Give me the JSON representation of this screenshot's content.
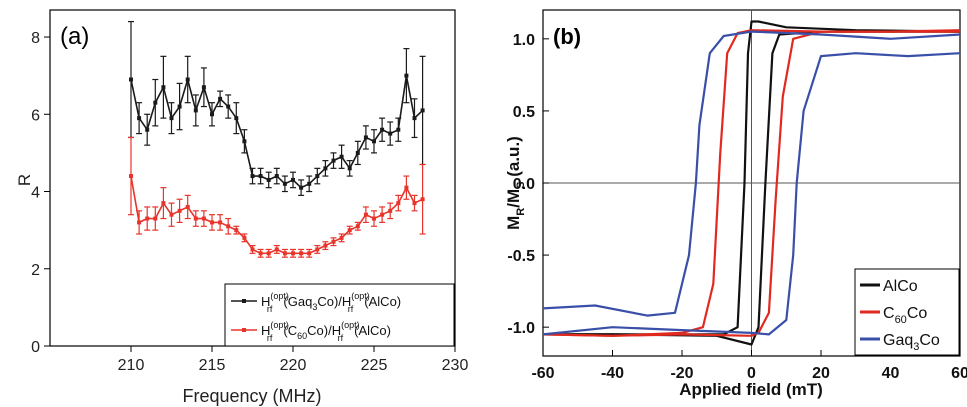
{
  "chart_data": [
    {
      "panel_label": "(a)",
      "type": "line",
      "xlabel": "Frequency (MHz)",
      "ylabel": "R",
      "xlim": [
        205,
        230
      ],
      "ylim": [
        0,
        8.7
      ],
      "xticks": [
        210,
        215,
        220,
        225,
        230
      ],
      "yticks": [
        0,
        2,
        4,
        6,
        8
      ],
      "grid": false,
      "legend_position": "bottom-right",
      "x": [
        210,
        210.5,
        211,
        211.5,
        212,
        212.5,
        213,
        213.5,
        214,
        214.5,
        215,
        215.5,
        216,
        216.5,
        217,
        217.5,
        218,
        218.5,
        219,
        219.5,
        220,
        220.5,
        221,
        221.5,
        222,
        222.5,
        223,
        223.5,
        224,
        224.5,
        225,
        225.5,
        226,
        226.5,
        227,
        227.5,
        228
      ],
      "series": [
        {
          "legend": {
            "main": "H",
            "sup": "(opt)",
            "sub": "rf",
            "rest_a": "(Gaq",
            "rest_a_sub": "3",
            "rest_b": "Co)/H",
            "sup2": "(opt)",
            "sub2": "rf",
            "rest_c": "(AlCo)"
          },
          "color": "#1a1a1a",
          "values": [
            6.9,
            5.9,
            5.6,
            6.3,
            6.7,
            5.9,
            6.2,
            6.9,
            6.1,
            6.7,
            6.0,
            6.4,
            6.2,
            5.9,
            5.3,
            4.4,
            4.4,
            4.3,
            4.4,
            4.2,
            4.3,
            4.1,
            4.2,
            4.4,
            4.6,
            4.8,
            4.9,
            4.6,
            5.0,
            5.4,
            5.3,
            5.6,
            5.5,
            5.6,
            7.0,
            5.9,
            6.1
          ],
          "errors": [
            1.5,
            0.4,
            0.4,
            0.6,
            0.8,
            0.4,
            0.6,
            0.6,
            0.4,
            0.5,
            0.3,
            0.2,
            0.3,
            0.4,
            0.3,
            0.2,
            0.2,
            0.2,
            0.2,
            0.2,
            0.2,
            0.2,
            0.2,
            0.2,
            0.2,
            0.2,
            0.3,
            0.2,
            0.3,
            0.3,
            0.3,
            0.3,
            0.3,
            0.3,
            0.7,
            0.5,
            1.4
          ]
        },
        {
          "legend": {
            "main": "H",
            "sup": "(opt)",
            "sub": "rf",
            "rest_a": "(C",
            "rest_a_sub": "60",
            "rest_b": "Co)/H",
            "sup2": "(opt)",
            "sub2": "rf",
            "rest_c": "(AlCo)"
          },
          "color": "#e8342a",
          "values": [
            4.4,
            3.2,
            3.3,
            3.3,
            3.7,
            3.4,
            3.5,
            3.6,
            3.3,
            3.3,
            3.2,
            3.2,
            3.1,
            3.0,
            2.8,
            2.5,
            2.4,
            2.4,
            2.5,
            2.4,
            2.4,
            2.4,
            2.4,
            2.5,
            2.6,
            2.7,
            2.8,
            3.0,
            3.1,
            3.4,
            3.3,
            3.4,
            3.5,
            3.7,
            4.1,
            3.7,
            3.8
          ],
          "errors": [
            1.0,
            0.3,
            0.3,
            0.3,
            0.4,
            0.3,
            0.3,
            0.3,
            0.2,
            0.2,
            0.2,
            0.2,
            0.2,
            0.1,
            0.1,
            0.1,
            0.1,
            0.1,
            0.1,
            0.1,
            0.1,
            0.1,
            0.1,
            0.1,
            0.1,
            0.1,
            0.1,
            0.1,
            0.1,
            0.2,
            0.2,
            0.2,
            0.2,
            0.2,
            0.3,
            0.2,
            0.9
          ]
        }
      ]
    },
    {
      "panel_label": "(b)",
      "type": "line",
      "xlabel": "Applied field (mT)",
      "ylabel": {
        "main": "M",
        "sub1": "R",
        "mid": "/M",
        "sub2": "S",
        "rest": " (a.u.)"
      },
      "xlim": [
        -60,
        60
      ],
      "ylim": [
        -1.2,
        1.2
      ],
      "xticks": [
        -60,
        -40,
        -20,
        0,
        20,
        40,
        60
      ],
      "yticks": [
        -1.0,
        -0.5,
        0.0,
        0.5,
        1.0
      ],
      "yticklabels": [
        "-1.0",
        "-0.5",
        "0.0",
        "0.5",
        "1.0"
      ],
      "grid": false,
      "reference_lines": {
        "x": 0,
        "y": 0
      },
      "legend_position": "bottom-right",
      "series": [
        {
          "legend": {
            "main": "AlCo"
          },
          "color": "#111111",
          "branches": [
            {
              "x": [
                -60,
                -40,
                -20,
                -8,
                -4,
                -2,
                -1,
                0,
                2,
                10,
                30,
                60
              ],
              "y": [
                -1.05,
                -1.05,
                -1.05,
                -1.05,
                -1.0,
                0.0,
                0.9,
                1.12,
                1.12,
                1.08,
                1.06,
                1.05
              ]
            },
            {
              "x": [
                60,
                40,
                20,
                8,
                6,
                4,
                2,
                0,
                -10,
                -40,
                -60
              ],
              "y": [
                1.05,
                1.05,
                1.05,
                1.03,
                0.9,
                0.0,
                -1.0,
                -1.12,
                -1.06,
                -1.05,
                -1.05
              ]
            }
          ]
        },
        {
          "legend": {
            "main": "C",
            "sub": "60",
            "rest": "Co"
          },
          "color": "#e02a20",
          "branches": [
            {
              "x": [
                -60,
                -40,
                -20,
                -14,
                -11,
                -9,
                -7,
                -4,
                0,
                20,
                40,
                60
              ],
              "y": [
                -1.05,
                -1.06,
                -1.04,
                -1.0,
                -0.7,
                0.2,
                0.9,
                1.04,
                1.06,
                1.05,
                1.05,
                1.05
              ]
            },
            {
              "x": [
                60,
                40,
                20,
                12,
                9,
                7,
                5,
                2,
                0,
                -20,
                -40,
                -60
              ],
              "y": [
                1.06,
                1.05,
                1.05,
                1.0,
                0.6,
                -0.1,
                -0.9,
                -1.04,
                -1.06,
                -1.05,
                -1.06,
                -1.05
              ]
            }
          ]
        },
        {
          "legend": {
            "main": "Gaq",
            "sub": "3",
            "rest": "Co"
          },
          "color": "#3a4fa8",
          "branches": [
            {
              "x": [
                -60,
                -45,
                -30,
                -22,
                -18,
                -16,
                -15,
                -12,
                -8,
                0,
                20,
                40,
                60
              ],
              "y": [
                -0.87,
                -0.85,
                -0.92,
                -0.9,
                -0.5,
                0.0,
                0.4,
                0.9,
                1.02,
                1.05,
                1.03,
                1.0,
                1.03
              ]
            },
            {
              "x": [
                60,
                45,
                30,
                20,
                15,
                13,
                12,
                10,
                5,
                0,
                -20,
                -40,
                -60
              ],
              "y": [
                0.9,
                0.88,
                0.9,
                0.88,
                0.5,
                0.0,
                -0.5,
                -0.95,
                -1.05,
                -1.04,
                -1.02,
                -1.0,
                -1.05
              ]
            }
          ]
        }
      ]
    }
  ]
}
